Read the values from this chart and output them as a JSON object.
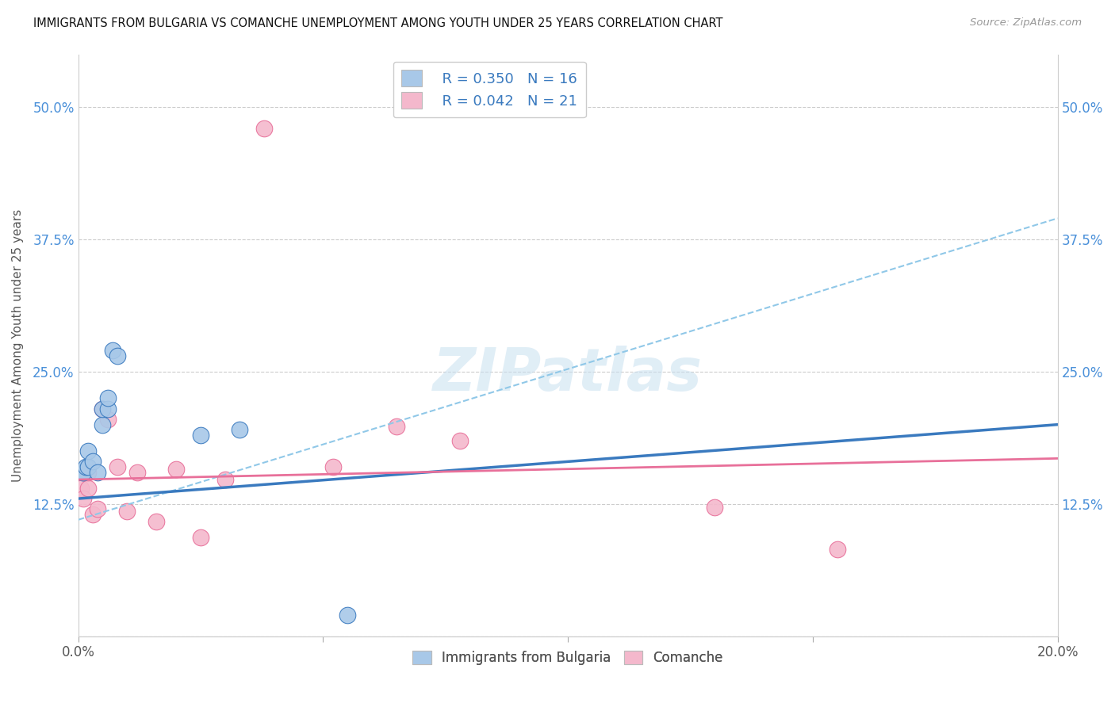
{
  "title": "IMMIGRANTS FROM BULGARIA VS COMANCHE UNEMPLOYMENT AMONG YOUTH UNDER 25 YEARS CORRELATION CHART",
  "source": "Source: ZipAtlas.com",
  "ylabel": "Unemployment Among Youth under 25 years",
  "xlim": [
    0.0,
    0.2
  ],
  "ylim": [
    0.0,
    0.55
  ],
  "yticks": [
    0.0,
    0.125,
    0.25,
    0.375,
    0.5
  ],
  "ytick_labels": [
    "",
    "12.5%",
    "25.0%",
    "37.5%",
    "50.0%"
  ],
  "xticks": [
    0.0,
    0.05,
    0.1,
    0.15,
    0.2
  ],
  "xtick_labels": [
    "0.0%",
    "",
    "",
    "",
    "20.0%"
  ],
  "blue_color": "#a8c8e8",
  "pink_color": "#f4b8cc",
  "blue_line_color": "#3a7abf",
  "pink_line_color": "#e8709a",
  "dashed_line_color": "#90c8e8",
  "watermark": "ZIPatlas",
  "blue_scatter": [
    [
      0.0008,
      0.155
    ],
    [
      0.001,
      0.155
    ],
    [
      0.0015,
      0.16
    ],
    [
      0.002,
      0.16
    ],
    [
      0.002,
      0.175
    ],
    [
      0.003,
      0.165
    ],
    [
      0.004,
      0.155
    ],
    [
      0.005,
      0.2
    ],
    [
      0.005,
      0.215
    ],
    [
      0.006,
      0.215
    ],
    [
      0.006,
      0.225
    ],
    [
      0.007,
      0.27
    ],
    [
      0.008,
      0.265
    ],
    [
      0.025,
      0.19
    ],
    [
      0.033,
      0.195
    ],
    [
      0.055,
      0.02
    ]
  ],
  "pink_scatter": [
    [
      0.0005,
      0.14
    ],
    [
      0.001,
      0.13
    ],
    [
      0.002,
      0.14
    ],
    [
      0.002,
      0.155
    ],
    [
      0.003,
      0.115
    ],
    [
      0.004,
      0.12
    ],
    [
      0.005,
      0.215
    ],
    [
      0.006,
      0.205
    ],
    [
      0.008,
      0.16
    ],
    [
      0.01,
      0.118
    ],
    [
      0.012,
      0.155
    ],
    [
      0.016,
      0.108
    ],
    [
      0.02,
      0.158
    ],
    [
      0.025,
      0.093
    ],
    [
      0.03,
      0.148
    ],
    [
      0.038,
      0.48
    ],
    [
      0.052,
      0.16
    ],
    [
      0.065,
      0.198
    ],
    [
      0.078,
      0.185
    ],
    [
      0.13,
      0.122
    ],
    [
      0.155,
      0.082
    ]
  ],
  "blue_trendline": [
    [
      0.0,
      0.13
    ],
    [
      0.2,
      0.2
    ]
  ],
  "pink_trendline": [
    [
      0.0,
      0.148
    ],
    [
      0.2,
      0.168
    ]
  ],
  "blue_dashed_trendline": [
    [
      0.0,
      0.11
    ],
    [
      0.2,
      0.395
    ]
  ]
}
